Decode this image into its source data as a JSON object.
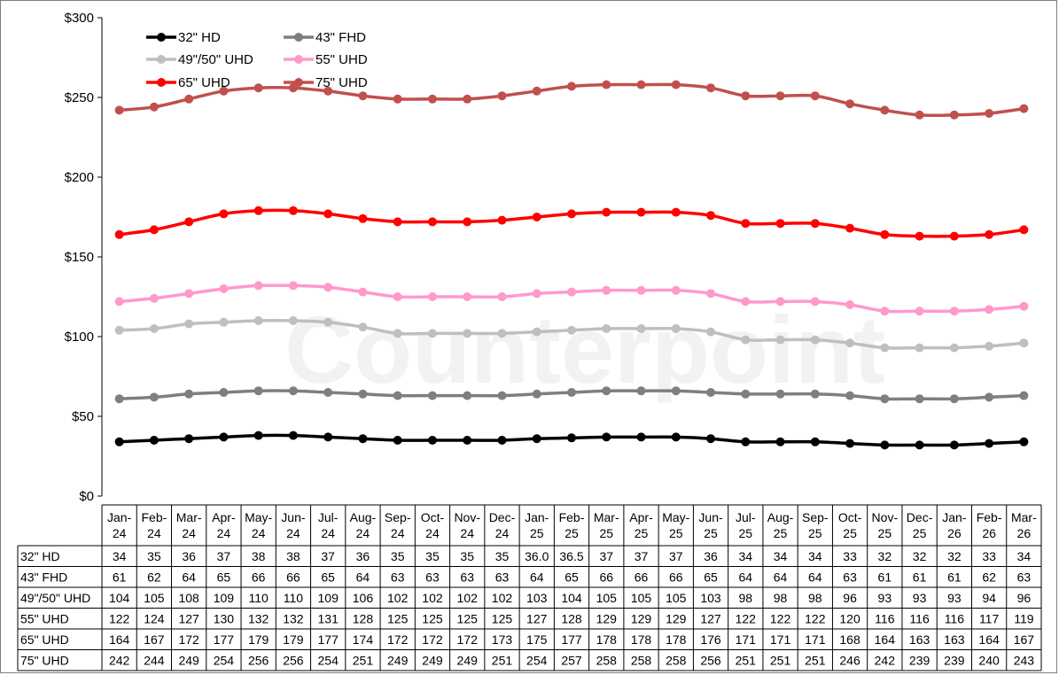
{
  "chart_data": {
    "type": "line",
    "watermark": "Counterpoint",
    "ylim": [
      0,
      300
    ],
    "yticks": [
      0,
      50,
      100,
      150,
      200,
      250,
      300
    ],
    "ytick_labels": [
      "$0",
      "$50",
      "$100",
      "$150",
      "$200",
      "$250",
      "$300"
    ],
    "grid": false,
    "legend_position": "top-left",
    "categories": [
      [
        "Jan-",
        "24"
      ],
      [
        "Feb-",
        "24"
      ],
      [
        "Mar-",
        "24"
      ],
      [
        "Apr-",
        "24"
      ],
      [
        "May-",
        "24"
      ],
      [
        "Jun-",
        "24"
      ],
      [
        "Jul-",
        "24"
      ],
      [
        "Aug-",
        "24"
      ],
      [
        "Sep-",
        "24"
      ],
      [
        "Oct-",
        "24"
      ],
      [
        "Nov-",
        "24"
      ],
      [
        "Dec-",
        "24"
      ],
      [
        "Jan-",
        "25"
      ],
      [
        "Feb-",
        "25"
      ],
      [
        "Mar-",
        "25"
      ],
      [
        "Apr-",
        "25"
      ],
      [
        "May-",
        "25"
      ],
      [
        "Jun-",
        "25"
      ],
      [
        "Jul-",
        "25"
      ],
      [
        "Aug-",
        "25"
      ],
      [
        "Sep-",
        "25"
      ],
      [
        "Oct-",
        "25"
      ],
      [
        "Nov-",
        "25"
      ],
      [
        "Dec-",
        "25"
      ],
      [
        "Jan-",
        "26"
      ],
      [
        "Feb-",
        "26"
      ],
      [
        "Mar-",
        "26"
      ]
    ],
    "series": [
      {
        "name": "32\" HD",
        "color": "#000000",
        "values": [
          34,
          35,
          36,
          37,
          38,
          38,
          37,
          36,
          35,
          35,
          35,
          35,
          36,
          36.5,
          37,
          37,
          37,
          36,
          34,
          34,
          34,
          33,
          32,
          32,
          32,
          33,
          34
        ],
        "labels": [
          "34",
          "35",
          "36",
          "37",
          "38",
          "38",
          "37",
          "36",
          "35",
          "35",
          "35",
          "35",
          "36.0",
          "36.5",
          "37",
          "37",
          "37",
          "36",
          "34",
          "34",
          "34",
          "33",
          "32",
          "32",
          "32",
          "33",
          "34"
        ]
      },
      {
        "name": "43\" FHD",
        "color": "#7f7f7f",
        "values": [
          61,
          62,
          64,
          65,
          66,
          66,
          65,
          64,
          63,
          63,
          63,
          63,
          64,
          65,
          66,
          66,
          66,
          65,
          64,
          64,
          64,
          63,
          61,
          61,
          61,
          62,
          63
        ],
        "labels": [
          "61",
          "62",
          "64",
          "65",
          "66",
          "66",
          "65",
          "64",
          "63",
          "63",
          "63",
          "63",
          "64",
          "65",
          "66",
          "66",
          "66",
          "65",
          "64",
          "64",
          "64",
          "63",
          "61",
          "61",
          "61",
          "62",
          "63"
        ]
      },
      {
        "name": "49\"/50\" UHD",
        "color": "#bfbfbf",
        "values": [
          104,
          105,
          108,
          109,
          110,
          110,
          109,
          106,
          102,
          102,
          102,
          102,
          103,
          104,
          105,
          105,
          105,
          103,
          98,
          98,
          98,
          96,
          93,
          93,
          93,
          94,
          96
        ],
        "labels": [
          "104",
          "105",
          "108",
          "109",
          "110",
          "110",
          "109",
          "106",
          "102",
          "102",
          "102",
          "102",
          "103",
          "104",
          "105",
          "105",
          "105",
          "103",
          "98",
          "98",
          "98",
          "96",
          "93",
          "93",
          "93",
          "94",
          "96"
        ]
      },
      {
        "name": "55\" UHD",
        "color": "#ff99cc",
        "values": [
          122,
          124,
          127,
          130,
          132,
          132,
          131,
          128,
          125,
          125,
          125,
          125,
          127,
          128,
          129,
          129,
          129,
          127,
          122,
          122,
          122,
          120,
          116,
          116,
          116,
          117,
          119
        ],
        "labels": [
          "122",
          "124",
          "127",
          "130",
          "132",
          "132",
          "131",
          "128",
          "125",
          "125",
          "125",
          "125",
          "127",
          "128",
          "129",
          "129",
          "129",
          "127",
          "122",
          "122",
          "122",
          "120",
          "116",
          "116",
          "116",
          "117",
          "119"
        ]
      },
      {
        "name": "65\" UHD",
        "color": "#ff0000",
        "values": [
          164,
          167,
          172,
          177,
          179,
          179,
          177,
          174,
          172,
          172,
          172,
          173,
          175,
          177,
          178,
          178,
          178,
          176,
          171,
          171,
          171,
          168,
          164,
          163,
          163,
          164,
          167
        ],
        "labels": [
          "164",
          "167",
          "172",
          "177",
          "179",
          "179",
          "177",
          "174",
          "172",
          "172",
          "172",
          "173",
          "175",
          "177",
          "178",
          "178",
          "178",
          "176",
          "171",
          "171",
          "171",
          "168",
          "164",
          "163",
          "163",
          "164",
          "167"
        ]
      },
      {
        "name": "75\" UHD",
        "color": "#c0504d",
        "values": [
          242,
          244,
          249,
          254,
          256,
          256,
          254,
          251,
          249,
          249,
          249,
          251,
          254,
          257,
          258,
          258,
          258,
          256,
          251,
          251,
          251,
          246,
          242,
          239,
          239,
          240,
          243
        ],
        "labels": [
          "242",
          "244",
          "249",
          "254",
          "256",
          "256",
          "254",
          "251",
          "249",
          "249",
          "249",
          "251",
          "254",
          "257",
          "258",
          "258",
          "258",
          "256",
          "251",
          "251",
          "251",
          "246",
          "242",
          "239",
          "239",
          "240",
          "243"
        ]
      }
    ]
  }
}
